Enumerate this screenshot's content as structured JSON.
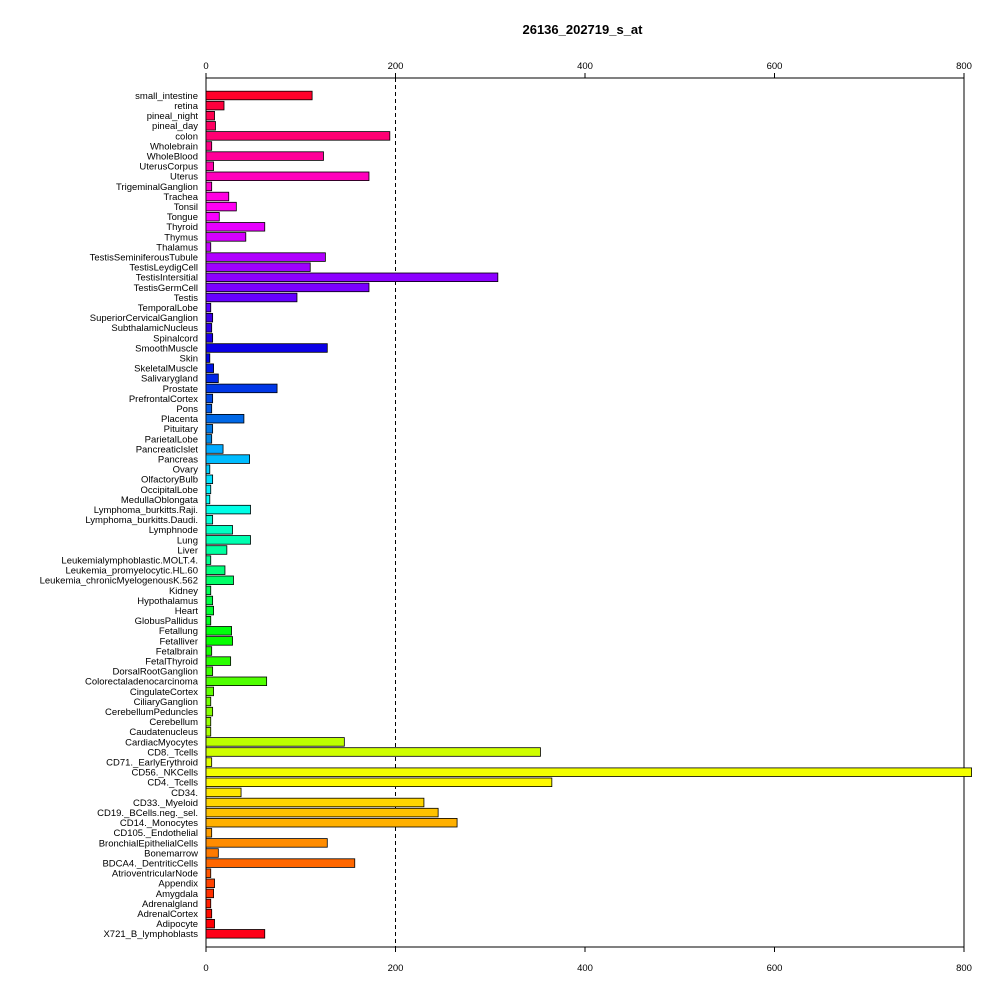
{
  "chart_data": {
    "type": "bar",
    "orientation": "horizontal",
    "title": "26136_202719_s_at",
    "xlabel": "",
    "ylabel": "",
    "xlim": [
      0,
      800
    ],
    "xticks": [
      0,
      200,
      400,
      600,
      800
    ],
    "reference_line": 200,
    "grid": false,
    "legend": "none",
    "categories": [
      "small_intestine",
      "retina",
      "pineal_night",
      "pineal_day",
      "colon",
      "Wholebrain",
      "WholeBlood",
      "UterusCorpus",
      "Uterus",
      "TrigeminalGanglion",
      "Trachea",
      "Tonsil",
      "Tongue",
      "Thyroid",
      "Thymus",
      "Thalamus",
      "TestisSeminiferousTubule",
      "TestisLeydigCell",
      "TestisIntersitial",
      "TestisGermCell",
      "Testis",
      "TemporalLobe",
      "SuperiorCervicalGanglion",
      "SubthalamicNucleus",
      "Spinalcord",
      "SmoothMuscle",
      "Skin",
      "SkeletalMuscle",
      "Salivarygland",
      "Prostate",
      "PrefrontalCortex",
      "Pons",
      "Placenta",
      "Pituitary",
      "ParietalLobe",
      "PancreaticIslet",
      "Pancreas",
      "Ovary",
      "OlfactoryBulb",
      "OccipitalLobe",
      "MedullaOblongata",
      "Lymphoma_burkitts.Raji.",
      "Lymphoma_burkitts.Daudi.",
      "Lymphnode",
      "Lung",
      "Liver",
      "Leukemialymphoblastic.MOLT.4.",
      "Leukemia_promyelocytic.HL.60",
      "Leukemia_chronicMyelogenousK.562",
      "Kidney",
      "Hypothalamus",
      "Heart",
      "GlobusPallidus",
      "Fetallung",
      "Fetalliver",
      "Fetalbrain",
      "FetalThyroid",
      "DorsalRootGanglion",
      "Colorectaladenocarcinoma",
      "CingulateCortex",
      "CiliaryGanglion",
      "CerebellumPeduncles",
      "Cerebellum",
      "Caudatenucleus",
      "CardiacMyocytes",
      "CD8._Tcells",
      "CD71._EarlyErythroid",
      "CD56._NKCells",
      "CD4._Tcells",
      "CD34.",
      "CD33._Myeloid",
      "CD19._BCells.neg._sel.",
      "CD14._Monocytes",
      "CD105._Endothelial",
      "BronchialEpithelialCells",
      "Bonemarrow",
      "BDCA4._DentriticCells",
      "AtrioventricularNode",
      "Appendix",
      "Amygdala",
      "Adrenalgland",
      "AdrenalCortex",
      "Adipocyte",
      "X721_B_lymphoblasts"
    ],
    "values": [
      112,
      19,
      9,
      10,
      194,
      6,
      124,
      8,
      172,
      6,
      24,
      32,
      14,
      62,
      42,
      5,
      126,
      110,
      308,
      172,
      96,
      5,
      7,
      6,
      7,
      128,
      4,
      8,
      13,
      75,
      7,
      6,
      40,
      7,
      6,
      18,
      46,
      4,
      7,
      5,
      4,
      47,
      7,
      28,
      47,
      22,
      5,
      20,
      29,
      5,
      7,
      8,
      5,
      27,
      28,
      6,
      26,
      7,
      64,
      8,
      5,
      7,
      5,
      5,
      146,
      353,
      6,
      808,
      365,
      37,
      230,
      245,
      265,
      6,
      128,
      13,
      157,
      5,
      9,
      8,
      5,
      6,
      9,
      62
    ]
  }
}
